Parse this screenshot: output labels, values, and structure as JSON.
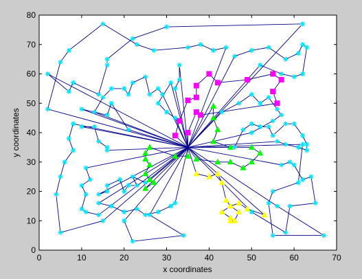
{
  "chart_data": {
    "type": "scatter",
    "xlabel": "x coordinates",
    "ylabel": "y coordinates",
    "xlim": [
      0,
      70
    ],
    "ylim": [
      0,
      80
    ],
    "xticks": [
      0,
      10,
      20,
      30,
      40,
      50,
      60,
      70
    ],
    "yticks": [
      0,
      10,
      20,
      30,
      40,
      50,
      60,
      70,
      80
    ],
    "grid": false,
    "depot": [
      35,
      35
    ],
    "route_color": "#00008b",
    "routes": [
      {
        "marker": "star",
        "color": "#00e5ff",
        "points": [
          [
            35,
            35
          ],
          [
            2,
            48
          ],
          [
            5,
            64
          ],
          [
            7,
            68
          ],
          [
            15,
            77
          ],
          [
            23,
            70
          ],
          [
            27,
            68
          ],
          [
            35,
            69
          ],
          [
            38,
            70
          ],
          [
            41,
            68
          ],
          [
            44,
            69
          ],
          [
            35,
            35
          ]
        ]
      },
      {
        "marker": "star",
        "color": "#00e5ff",
        "points": [
          [
            35,
            35
          ],
          [
            2,
            60
          ],
          [
            7,
            54
          ],
          [
            8,
            57
          ],
          [
            14,
            53
          ],
          [
            16,
            63
          ],
          [
            16,
            65
          ],
          [
            22,
            72
          ],
          [
            30,
            76
          ],
          [
            62,
            77
          ],
          [
            35,
            35
          ]
        ]
      },
      {
        "marker": "star",
        "color": "#00e5ff",
        "points": [
          [
            35,
            35
          ],
          [
            46,
            66
          ],
          [
            50,
            68
          ],
          [
            54,
            69
          ],
          [
            58,
            65
          ],
          [
            61,
            67
          ],
          [
            62,
            70
          ],
          [
            63,
            69
          ],
          [
            62,
            60
          ],
          [
            60,
            59
          ],
          [
            57,
            60
          ],
          [
            52,
            63
          ],
          [
            35,
            35
          ]
        ]
      },
      {
        "marker": "star",
        "color": "#00e5ff",
        "points": [
          [
            35,
            35
          ],
          [
            13,
            47
          ],
          [
            15,
            52
          ],
          [
            17,
            55
          ],
          [
            20,
            55
          ],
          [
            21,
            53
          ],
          [
            22,
            57
          ],
          [
            25,
            59
          ],
          [
            26,
            53
          ],
          [
            28,
            55
          ],
          [
            29,
            53
          ],
          [
            35,
            35
          ]
        ]
      },
      {
        "marker": "star",
        "color": "#00e5ff",
        "points": [
          [
            35,
            35
          ],
          [
            21,
            41
          ],
          [
            17,
            50
          ],
          [
            16,
            46
          ],
          [
            10,
            48
          ],
          [
            35,
            35
          ]
        ]
      },
      {
        "marker": "star",
        "color": "#00e5ff",
        "points": [
          [
            35,
            35
          ],
          [
            31,
            57
          ],
          [
            28,
            50
          ],
          [
            30,
            47
          ],
          [
            32,
            45
          ],
          [
            35,
            35
          ]
        ]
      },
      {
        "marker": "star",
        "color": "#00e5ff",
        "points": [
          [
            35,
            35
          ],
          [
            33,
            63
          ],
          [
            33,
            58
          ],
          [
            32,
            55
          ],
          [
            35,
            35
          ]
        ]
      },
      {
        "marker": "star",
        "color": "#00e5ff",
        "points": [
          [
            35,
            35
          ],
          [
            46,
            35
          ],
          [
            48,
            41
          ],
          [
            50,
            43
          ],
          [
            52,
            42
          ],
          [
            54,
            42
          ],
          [
            55,
            39
          ],
          [
            58,
            43
          ],
          [
            60,
            43
          ],
          [
            62,
            39
          ],
          [
            63,
            36
          ],
          [
            63,
            34
          ],
          [
            61,
            35
          ],
          [
            58,
            36
          ],
          [
            56,
            37
          ],
          [
            35,
            35
          ]
        ]
      },
      {
        "marker": "star",
        "color": "#00e5ff",
        "points": [
          [
            35,
            35
          ],
          [
            43,
            47
          ],
          [
            47,
            50
          ],
          [
            50,
            53
          ],
          [
            52,
            50
          ],
          [
            54,
            52
          ],
          [
            56,
            48
          ],
          [
            57,
            46
          ],
          [
            55,
            44
          ],
          [
            50,
            40
          ],
          [
            35,
            35
          ]
        ]
      },
      {
        "marker": "star",
        "color": "#00e5ff",
        "points": [
          [
            35,
            35
          ],
          [
            8,
            43
          ],
          [
            7,
            38
          ],
          [
            8,
            34
          ],
          [
            6,
            30
          ],
          [
            5,
            25
          ],
          [
            4,
            19
          ],
          [
            5,
            6
          ],
          [
            15,
            10
          ],
          [
            35,
            35
          ]
        ]
      },
      {
        "marker": "star",
        "color": "#00e5ff",
        "points": [
          [
            35,
            35
          ],
          [
            10,
            42
          ],
          [
            13,
            42
          ],
          [
            14,
            37
          ],
          [
            16,
            35
          ],
          [
            16,
            34
          ],
          [
            35,
            35
          ]
        ]
      },
      {
        "marker": "star",
        "color": "#00e5ff",
        "points": [
          [
            35,
            35
          ],
          [
            11,
            28
          ],
          [
            12,
            24
          ],
          [
            10,
            22
          ],
          [
            11,
            19
          ],
          [
            10,
            14
          ],
          [
            11,
            13
          ],
          [
            14,
            12
          ],
          [
            35,
            35
          ]
        ]
      },
      {
        "marker": "star",
        "color": "#00e5ff",
        "points": [
          [
            35,
            35
          ],
          [
            14,
            19
          ],
          [
            16,
            20
          ],
          [
            16,
            22
          ],
          [
            19,
            24
          ],
          [
            20,
            20
          ],
          [
            21,
            22
          ],
          [
            23,
            22
          ],
          [
            22,
            25
          ],
          [
            25,
            23
          ],
          [
            35,
            35
          ]
        ]
      },
      {
        "marker": "star",
        "color": "#00e5ff",
        "points": [
          [
            35,
            35
          ],
          [
            14,
            16
          ],
          [
            17,
            15
          ],
          [
            20,
            13
          ],
          [
            23,
            14
          ],
          [
            25,
            12
          ],
          [
            28,
            13
          ],
          [
            31,
            15
          ],
          [
            32,
            16
          ],
          [
            35,
            35
          ]
        ]
      },
      {
        "marker": "star",
        "color": "#00e5ff",
        "points": [
          [
            35,
            35
          ],
          [
            57,
            29
          ],
          [
            59,
            30
          ],
          [
            60,
            29
          ],
          [
            62,
            24
          ],
          [
            64,
            25
          ],
          [
            65,
            16
          ],
          [
            59,
            15
          ],
          [
            58,
            6
          ],
          [
            50,
            13
          ],
          [
            35,
            35
          ]
        ]
      },
      {
        "marker": "star",
        "color": "#00e5ff",
        "points": [
          [
            35,
            35
          ],
          [
            62,
            36
          ],
          [
            61,
            23
          ],
          [
            55,
            20
          ],
          [
            54,
            16
          ],
          [
            55,
            5
          ],
          [
            67,
            5
          ],
          [
            56,
            15
          ],
          [
            35,
            35
          ]
        ]
      },
      {
        "marker": "star",
        "color": "#00e5ff",
        "points": [
          [
            35,
            35
          ],
          [
            26,
            12
          ],
          [
            34,
            5
          ],
          [
            22,
            3
          ],
          [
            20,
            10
          ],
          [
            35,
            35
          ]
        ]
      },
      {
        "marker": "square",
        "color": "#ff00ff",
        "points": [
          [
            35,
            35
          ],
          [
            32,
            39
          ],
          [
            33,
            44
          ],
          [
            35,
            51
          ],
          [
            37,
            52
          ],
          [
            37,
            56
          ],
          [
            40,
            60
          ],
          [
            42,
            57
          ],
          [
            49,
            58
          ],
          [
            55,
            60
          ],
          [
            57,
            58
          ],
          [
            55,
            54
          ],
          [
            56,
            50
          ],
          [
            38,
            46
          ],
          [
            37,
            47
          ],
          [
            35,
            40
          ],
          [
            35,
            35
          ]
        ]
      },
      {
        "marker": "triangle",
        "color": "#00ff00",
        "points": [
          [
            35,
            35
          ],
          [
            41,
            49
          ],
          [
            41,
            45
          ],
          [
            42,
            41
          ],
          [
            41,
            37
          ],
          [
            45,
            35
          ],
          [
            50,
            35
          ],
          [
            52,
            33
          ],
          [
            50,
            30
          ],
          [
            48,
            28
          ],
          [
            45,
            30
          ],
          [
            42,
            30
          ],
          [
            37,
            31
          ],
          [
            35,
            35
          ]
        ]
      },
      {
        "marker": "triangle",
        "color": "#00ff00",
        "points": [
          [
            35,
            35
          ],
          [
            35,
            32
          ],
          [
            32,
            32
          ],
          [
            26,
            35
          ],
          [
            25,
            33
          ],
          [
            25,
            31
          ],
          [
            26,
            29
          ],
          [
            25,
            26
          ],
          [
            26,
            24
          ],
          [
            27,
            23
          ],
          [
            25,
            21
          ],
          [
            35,
            35
          ]
        ]
      },
      {
        "marker": "triangle",
        "color": "#ffff00",
        "points": [
          [
            35,
            35
          ],
          [
            37,
            26
          ],
          [
            40,
            25
          ],
          [
            42,
            26
          ],
          [
            43,
            23
          ],
          [
            44,
            17
          ],
          [
            45,
            15
          ],
          [
            43,
            13
          ],
          [
            45,
            11
          ],
          [
            45,
            10
          ],
          [
            46,
            10
          ],
          [
            47,
            13
          ],
          [
            45,
            15
          ],
          [
            47,
            16
          ],
          [
            49,
            14
          ],
          [
            53,
            12
          ],
          [
            35,
            35
          ]
        ]
      }
    ]
  }
}
